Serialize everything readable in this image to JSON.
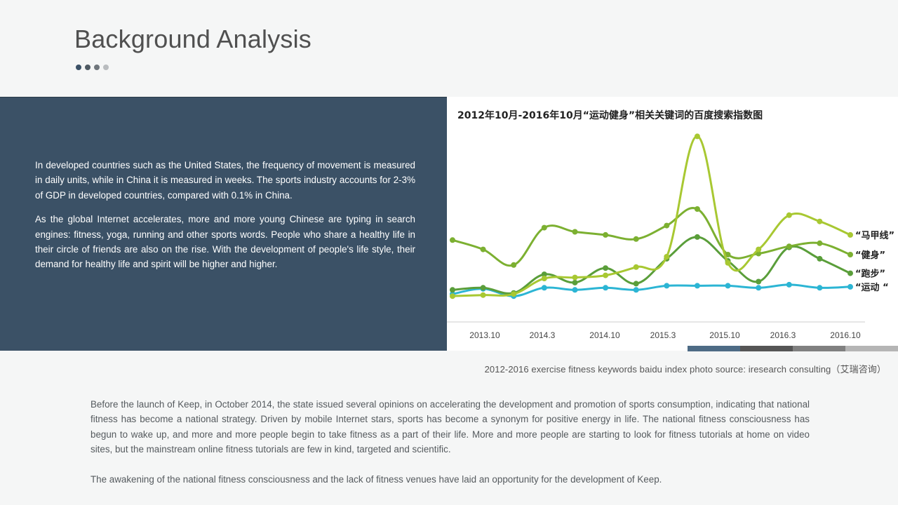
{
  "page": {
    "title": "Background Analysis",
    "dot_colors": [
      "#3b5166",
      "#4f5a63",
      "#6f767c",
      "#b9bcbf"
    ]
  },
  "info_panel": {
    "paragraphs": [
      "In developed countries such as the United States, the frequency of movement is measured in daily units, while in China it is measured in weeks. The sports industry accounts for 2-3% of GDP in developed countries, compared with 0.1% in China.",
      "As the global Internet accelerates, more and more young Chinese are typing in search engines: fitness, yoga, running and other sports words. People who share a healthy life in their circle of friends are also on the rise. With the development of people's life style, their demand for healthy life and spirit will be higher and higher."
    ]
  },
  "chart_data": {
    "type": "line",
    "title": "2012年10月-2016年10月“运动健身”相关关键词的百度搜索指数图",
    "tick_labels": [
      "2013.10",
      "2014.3",
      "2014.10",
      "2015.3",
      "2015.10",
      "2016.3",
      "2016.10"
    ],
    "grid": false,
    "legend": "series labels at right end of lines",
    "series": [
      {
        "name": "“马甲线”",
        "color": "#a8c832",
        "values": [
          8,
          9,
          10,
          25,
          26,
          28,
          36,
          46,
          162,
          40,
          53,
          86,
          80,
          67
        ]
      },
      {
        "name": "“健身”",
        "color": "#7cb031",
        "values": [
          62,
          53,
          38,
          74,
          70,
          67,
          63,
          76,
          92,
          48,
          49,
          56,
          59,
          48
        ]
      },
      {
        "name": "“跑步”",
        "color": "#5a9e3a",
        "values": [
          14,
          16,
          11,
          29,
          21,
          35,
          20,
          44,
          65,
          42,
          22,
          55,
          44,
          30
        ]
      },
      {
        "name": "“运动 “",
        "color": "#2cb5d4",
        "values": [
          10,
          15,
          8,
          16,
          14,
          16,
          14,
          18,
          18,
          18,
          16,
          19,
          16,
          17
        ]
      }
    ]
  },
  "segment_bar": {
    "colors": [
      "#4d6b85",
      "#555555",
      "#808080",
      "#b5b5b5"
    ]
  },
  "caption": "2012-2016 exercise fitness keywords baidu index photo source: iresearch consulting（艾瑞咨询）",
  "body": {
    "paragraphs": [
      "Before the launch of Keep, in October 2014, the state issued several opinions on accelerating the development and promotion of sports consumption, indicating that national fitness has become a national strategy. Driven by mobile Internet stars, sports has become a synonym for positive energy in life. The national fitness consciousness has begun to wake up, and more and more people begin to take fitness as a part of their life. More and more people are starting to look for fitness tutorials at home on video sites, but the mainstream online fitness tutorials are few in kind, targeted and scientific.",
      "The awakening of the national fitness consciousness and the lack of fitness venues have laid an opportunity for the development of Keep."
    ]
  }
}
